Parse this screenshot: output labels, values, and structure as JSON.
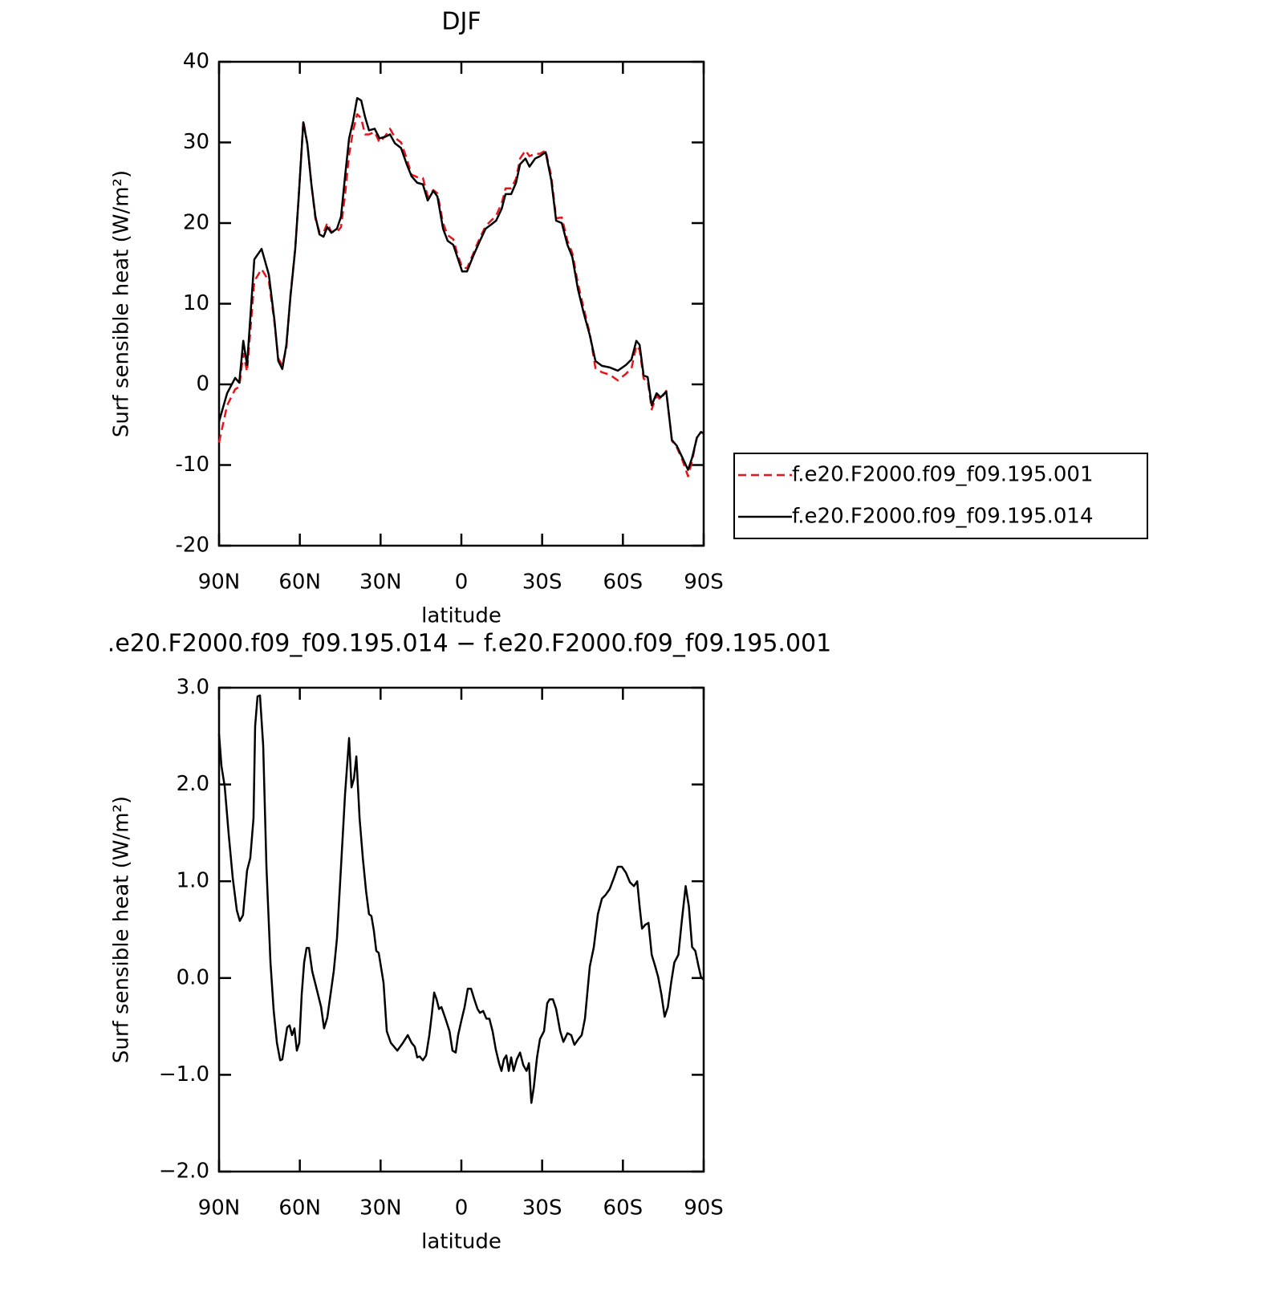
{
  "chart_data": [
    {
      "type": "line",
      "title": "DJF",
      "x_label": "latitude",
      "y_label": "Surf sensible heat (W/m²)",
      "xlim": [
        90,
        -90
      ],
      "xticks": [
        {
          "value": 90,
          "label": "90N"
        },
        {
          "value": 60,
          "label": "60N"
        },
        {
          "value": 30,
          "label": "30N"
        },
        0,
        {
          "value": -30,
          "label": "30S"
        },
        {
          "value": -60,
          "label": "60S"
        },
        {
          "value": -90,
          "label": "90S"
        }
      ],
      "ylim": [
        -20,
        40
      ],
      "yticks": [
        -20,
        -10,
        0,
        10,
        20,
        30,
        40
      ],
      "legend": "right",
      "x": [
        90,
        87,
        84,
        82.5,
        81,
        79.6,
        76.9,
        74.2,
        71.5,
        69.4,
        68,
        66.5,
        65,
        63.5,
        61.7,
        60.5,
        58.7,
        57.2,
        55.7,
        54.2,
        52.7,
        51.2,
        49.8,
        48.3,
        46.2,
        44.7,
        43.2,
        41.7,
        40.2,
        38.7,
        37.2,
        35.8,
        34.3,
        32.2,
        30.4,
        28.3,
        26.5,
        24.7,
        22.4,
        20.3,
        18.5,
        16.4,
        14.3,
        12.5,
        10.4,
        8.9,
        6.8,
        5.1,
        3,
        1.5,
        -0.3,
        -2.1,
        -4.5,
        -6.9,
        -9,
        -11,
        -12.9,
        -15,
        -16.4,
        -18.5,
        -20.3,
        -21.8,
        -23.8,
        -25.3,
        -27.4,
        -29.2,
        -31.3,
        -33.4,
        -35.2,
        -37.3,
        -39.4,
        -41.2,
        -43.3,
        -45.4,
        -47.7,
        -49.8,
        -52.2,
        -55.1,
        -58.1,
        -61.1,
        -63.2,
        -65,
        -66.2,
        -67.7,
        -69.2,
        -70.7,
        -72.5,
        -74,
        -76.1,
        -78.2,
        -80,
        -82.1,
        -84.2,
        -85.7,
        -87.5,
        -89,
        -90
      ],
      "series": [
        {
          "name": "f.e20.F2000.f09_f09.195.001",
          "color": "#e8141b",
          "linestyle": "dashed",
          "values": [
            -7.2,
            -2.6,
            -0.6,
            -0.3,
            3.8,
            1.6,
            12.8,
            14.3,
            12.8,
            7.6,
            3.2,
            2.4,
            4.5,
            11.0,
            16.9,
            22.8,
            32.7,
            29.8,
            24.8,
            20.5,
            18.9,
            18.8,
            20.0,
            18.9,
            18.9,
            19.5,
            23.5,
            28.5,
            31.5,
            33.5,
            33.0,
            31.0,
            31.0,
            31.3,
            30.0,
            30.8,
            31.7,
            30.6,
            30.0,
            28.0,
            26.0,
            25.7,
            25.6,
            23.3,
            24.1,
            23.7,
            20.0,
            18.5,
            18.0,
            16.2,
            14.5,
            14.4,
            16.3,
            18.2,
            19.6,
            20.3,
            20.9,
            22.5,
            24.3,
            24.3,
            25.5,
            28.0,
            29.0,
            28.3,
            28.6,
            28.6,
            29.0,
            25.8,
            20.6,
            20.7,
            17.8,
            16.3,
            12.5,
            9.5,
            6.3,
            2.0,
            1.5,
            1.2,
            0.5,
            1.3,
            2.0,
            4.8,
            4.3,
            0.7,
            0.5,
            -3.1,
            -1.4,
            -1.9,
            -0.8,
            -7.0,
            -7.8,
            -9.4,
            -11.4,
            -9.5,
            -6.5,
            -5.9,
            -6.1
          ]
        },
        {
          "name": "f.e20.F2000.f09_f09.195.014",
          "color": "#000000",
          "linestyle": "solid",
          "values": [
            -4.6,
            -1.1,
            0.8,
            0.2,
            5.4,
            2.4,
            15.5,
            16.8,
            13.6,
            7.9,
            2.9,
            1.9,
            4.9,
            10.8,
            16.8,
            22.8,
            32.5,
            29.8,
            24.8,
            20.8,
            18.6,
            18.3,
            19.5,
            18.8,
            19.3,
            20.8,
            25.8,
            30.5,
            32.7,
            35.5,
            35.2,
            33.2,
            31.5,
            31.7,
            30.5,
            30.7,
            31.0,
            29.9,
            29.3,
            27.3,
            25.8,
            25.0,
            24.8,
            22.8,
            24.0,
            23.3,
            19.3,
            17.8,
            17.3,
            15.8,
            14.0,
            14.0,
            16.0,
            17.8,
            19.3,
            19.8,
            20.3,
            21.8,
            23.6,
            23.6,
            25.0,
            27.3,
            28.0,
            27.0,
            28.0,
            28.3,
            28.8,
            25.3,
            20.3,
            20.0,
            17.3,
            15.8,
            11.8,
            8.9,
            6.1,
            2.9,
            2.3,
            2.1,
            1.7,
            2.4,
            3.1,
            5.4,
            4.9,
            1.1,
            0.9,
            -2.6,
            -1.1,
            -1.6,
            -0.9,
            -6.9,
            -7.6,
            -9.1,
            -10.6,
            -9.1,
            -6.6,
            -5.9,
            -6.1
          ]
        }
      ]
    },
    {
      "type": "line",
      "title": ".e20.F2000.f09_f09.195.014 − f.e20.F2000.f09_f09.195.001",
      "x_label": "latitude",
      "y_label": "Surf sensible heat (W/m²)",
      "xlim": [
        90,
        -90
      ],
      "xticks": [
        {
          "value": 90,
          "label": "90N"
        },
        {
          "value": 60,
          "label": "60N"
        },
        {
          "value": 30,
          "label": "30N"
        },
        0,
        {
          "value": -30,
          "label": "30S"
        },
        {
          "value": -60,
          "label": "60S"
        },
        {
          "value": -90,
          "label": "90S"
        }
      ],
      "ylim": [
        -2,
        3
      ],
      "yticks": [
        {
          "value": -2,
          "label": "−2.0"
        },
        {
          "value": -1,
          "label": "−1.0"
        },
        {
          "value": 0,
          "label": "0.0"
        },
        {
          "value": 1,
          "label": "1.0"
        },
        {
          "value": 2,
          "label": "2.0"
        },
        {
          "value": 3,
          "label": "3.0"
        }
      ],
      "color": "#000000",
      "x": [
        90,
        89.1,
        87.9,
        86.4,
        84.9,
        83.4,
        82.3,
        81.1,
        79.6,
        78.4,
        77.2,
        76.6,
        75.7,
        74.8,
        73.6,
        72.4,
        70.9,
        69.7,
        68.5,
        67.3,
        66.5,
        65.6,
        64.7,
        63.8,
        62.9,
        62,
        61.1,
        60.2,
        59.3,
        58.4,
        57.5,
        56.6,
        55.4,
        53.6,
        52.1,
        51,
        49.8,
        48.6,
        47.4,
        46.2,
        44.7,
        43.2,
        41.7,
        40.8,
        39.9,
        39,
        37.8,
        36.6,
        35.4,
        34.3,
        33.4,
        32.5,
        31.6,
        30.7,
        28.9,
        27.7,
        26.2,
        23.8,
        21.7,
        19.9,
        18.5,
        17.3,
        16.4,
        15.5,
        14.3,
        13.1,
        11.9,
        11,
        10.1,
        9.2,
        8.3,
        7.4,
        5.9,
        4.4,
        3.3,
        2.1,
        1.2,
        0,
        -1.2,
        -2.4,
        -3.6,
        -4.8,
        -6,
        -6.9,
        -8.1,
        -9.3,
        -10.4,
        -11.6,
        -12.8,
        -14,
        -14.9,
        -15.8,
        -16.7,
        -17.6,
        -18.5,
        -19.4,
        -20.6,
        -21.8,
        -23,
        -24.2,
        -25.1,
        -26,
        -26.9,
        -28.1,
        -29.2,
        -30.7,
        -31.9,
        -32.8,
        -34,
        -35.2,
        -36.7,
        -37.9,
        -39.4,
        -40.8,
        -42,
        -43.5,
        -44.7,
        -45.9,
        -47.7,
        -49.2,
        -50.7,
        -52.2,
        -53.6,
        -55.1,
        -56.6,
        -58.1,
        -59.6,
        -61.1,
        -62.6,
        -64.1,
        -65.3,
        -66.2,
        -67.1,
        -68.3,
        -69.5,
        -70.7,
        -71.9,
        -73.1,
        -74.3,
        -75.5,
        -76.7,
        -77.9,
        -79.1,
        -80.6,
        -81.8,
        -83.3,
        -84.5,
        -85.7,
        -86.9,
        -88.1,
        -89,
        -90
      ],
      "values": [
        2.52,
        2.19,
        1.98,
        1.48,
        1.03,
        0.7,
        0.59,
        0.65,
        1.11,
        1.24,
        1.65,
        2.6,
        2.91,
        2.92,
        2.4,
        1.15,
        0.16,
        -0.34,
        -0.67,
        -0.85,
        -0.84,
        -0.67,
        -0.51,
        -0.49,
        -0.59,
        -0.52,
        -0.75,
        -0.67,
        -0.17,
        0.16,
        0.31,
        0.31,
        0.07,
        -0.13,
        -0.3,
        -0.52,
        -0.41,
        -0.17,
        0.07,
        0.41,
        1.15,
        1.9,
        2.48,
        1.97,
        2.06,
        2.29,
        1.65,
        1.24,
        0.9,
        0.66,
        0.64,
        0.49,
        0.28,
        0.26,
        -0.05,
        -0.55,
        -0.67,
        -0.75,
        -0.67,
        -0.59,
        -0.67,
        -0.71,
        -0.82,
        -0.81,
        -0.85,
        -0.8,
        -0.59,
        -0.38,
        -0.15,
        -0.22,
        -0.32,
        -0.3,
        -0.42,
        -0.55,
        -0.75,
        -0.77,
        -0.59,
        -0.44,
        -0.3,
        -0.11,
        -0.11,
        -0.22,
        -0.32,
        -0.36,
        -0.34,
        -0.42,
        -0.42,
        -0.55,
        -0.74,
        -0.88,
        -0.96,
        -0.84,
        -0.8,
        -0.96,
        -0.82,
        -0.96,
        -0.84,
        -0.77,
        -0.9,
        -0.96,
        -0.88,
        -1.29,
        -1.13,
        -0.82,
        -0.63,
        -0.55,
        -0.26,
        -0.22,
        -0.22,
        -0.32,
        -0.55,
        -0.66,
        -0.57,
        -0.59,
        -0.69,
        -0.63,
        -0.59,
        -0.42,
        0.12,
        0.32,
        0.66,
        0.82,
        0.86,
        0.92,
        1.03,
        1.15,
        1.15,
        1.09,
        0.99,
        0.95,
        1.0,
        0.74,
        0.51,
        0.55,
        0.57,
        0.24,
        0.13,
        0.01,
        -0.17,
        -0.4,
        -0.3,
        -0.05,
        0.16,
        0.24,
        0.57,
        0.95,
        0.74,
        0.32,
        0.28,
        0.12,
        0.01,
        -0.02
      ]
    }
  ]
}
